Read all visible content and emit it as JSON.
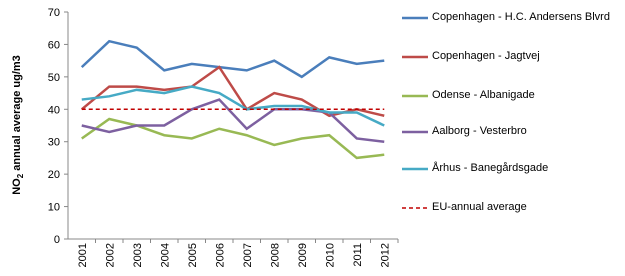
{
  "chart_data": {
    "type": "line",
    "y_label": {
      "main": "NO",
      "sub": "2",
      "rest": " annual average ug/m3"
    },
    "categories": [
      "2001",
      "2002",
      "2003",
      "2004",
      "2005",
      "2006",
      "2007",
      "2008",
      "2009",
      "2010",
      "2011",
      "2012"
    ],
    "ylim": [
      0,
      70
    ],
    "yticks": [
      0,
      10,
      20,
      30,
      40,
      50,
      60,
      70
    ],
    "grid": false,
    "legend": "right",
    "series": [
      {
        "name": "Copenhagen - H.C. Andersens Blvrd",
        "color": "#4a7ebb",
        "values": [
          53,
          61,
          59,
          52,
          54,
          53,
          52,
          55,
          50,
          56,
          54,
          55
        ]
      },
      {
        "name": "Copenhagen - Jagtvej",
        "color": "#be4b48",
        "values": [
          40,
          47,
          47,
          46,
          47,
          53,
          40,
          45,
          43,
          38,
          40,
          38
        ]
      },
      {
        "name": "Odense - Albanigade",
        "color": "#98b954",
        "values": [
          31,
          37,
          35,
          32,
          31,
          34,
          32,
          29,
          31,
          32,
          25,
          26
        ]
      },
      {
        "name": "Aalborg - Vesterbro",
        "color": "#7d60a0",
        "values": [
          35,
          33,
          35,
          35,
          40,
          43,
          34,
          40,
          40,
          39,
          31,
          30
        ]
      },
      {
        "name": "Århus - Banegårdsgade",
        "color": "#46aac5",
        "values": [
          43,
          44,
          46,
          45,
          47,
          45,
          40,
          41,
          41,
          39,
          39,
          35
        ]
      },
      {
        "name": "EU-annual average",
        "color": "#c00000",
        "dashed": true,
        "values": [
          40,
          40,
          40,
          40,
          40,
          40,
          40,
          40,
          40,
          40,
          40,
          40
        ]
      }
    ]
  }
}
